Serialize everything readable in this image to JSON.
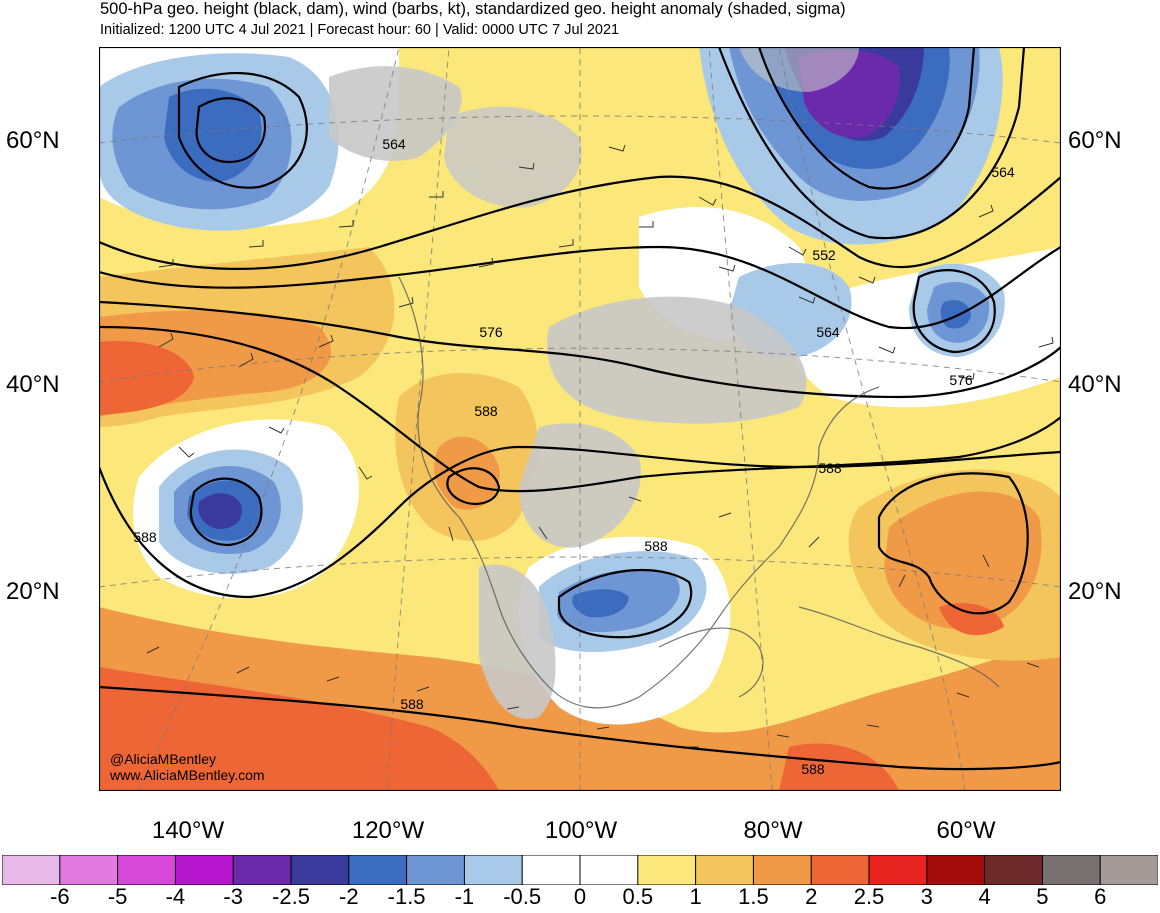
{
  "header": {
    "title": "500-hPa geo. height (black, dam), wind (barbs, kt), standardized geo. height anomaly (shaded, sigma)",
    "subtitle": "Initialized: 1200 UTC 4 Jul 2021 | Forecast hour: 60 | Valid: 0000 UTC 7 Jul 2021"
  },
  "axes": {
    "lat_left": [
      "60°N",
      "40°N",
      "20°N"
    ],
    "lat_right": [
      "60°N",
      "40°N",
      "20°N"
    ],
    "lon_bottom": [
      "140°W",
      "120°W",
      "100°W",
      "80°W",
      "60°W"
    ]
  },
  "contour_labels": [
    "564",
    "564",
    "552",
    "564",
    "576",
    "576",
    "588",
    "588",
    "588",
    "588",
    "588",
    "588"
  ],
  "colorbar": {
    "ticks": [
      "-6",
      "-5",
      "-4",
      "-3",
      "-2.5",
      "-2",
      "-1.5",
      "-1",
      "-0.5",
      "0",
      "0.5",
      "1",
      "1.5",
      "2",
      "2.5",
      "3",
      "4",
      "5",
      "6"
    ],
    "colors": [
      "#e8b9e8",
      "#e07ae0",
      "#d548d8",
      "#b515cc",
      "#6b2aac",
      "#3a3a9c",
      "#3b6cc0",
      "#6f96d4",
      "#a9c9e8",
      "#ffffff",
      "#ffffff",
      "#fbe77a",
      "#f3c55c",
      "#f09a48",
      "#ee6636",
      "#e82420",
      "#a40c0c",
      "#6e2a2a",
      "#77706e",
      "#a49a98"
    ]
  },
  "credit": {
    "handle": "@AliciaMBentley",
    "site": "www.AliciaMBentley.com"
  }
}
